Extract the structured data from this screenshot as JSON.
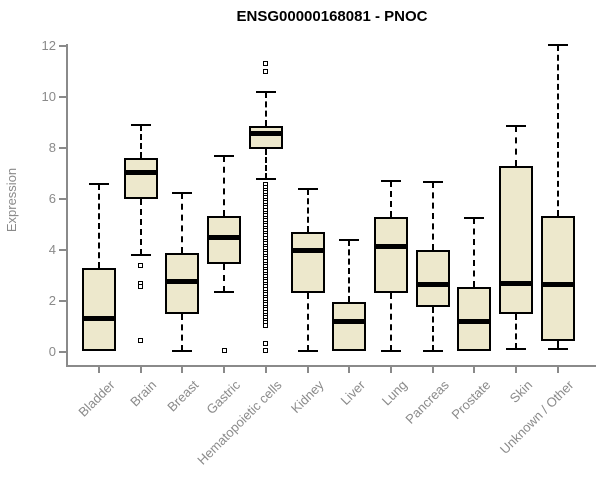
{
  "title": "ENSG00000168081 - PNOC",
  "chart_data": {
    "type": "boxplot",
    "title": "ENSG00000168081 - PNOC",
    "xlabel": "",
    "ylabel": "Expression",
    "ylim": [
      0,
      12
    ],
    "yticks": [
      0,
      2,
      4,
      6,
      8,
      10,
      12
    ],
    "grid": false,
    "legend": "none",
    "colors": {
      "box_fill": "#EDE8CC",
      "box_border": "#000000",
      "median": "#000000",
      "axis": "#8A8A8A",
      "title": "#000000",
      "background": "#FFFFFF"
    },
    "categories": [
      "Bladder",
      "Brain",
      "Breast",
      "Gastric",
      "Hematopoietic cells",
      "Kidney",
      "Liver",
      "Lung",
      "Pancreas",
      "Prostate",
      "Skin",
      "Unknown / Other"
    ],
    "boxes": [
      {
        "label": "Bladder",
        "whisker_low": 0.05,
        "q1": 0.05,
        "median": 1.3,
        "q3": 3.3,
        "whisker_high": 6.6,
        "outliers": []
      },
      {
        "label": "Brain",
        "whisker_low": 3.8,
        "q1": 6.0,
        "median": 7.05,
        "q3": 7.6,
        "whisker_high": 8.9,
        "outliers": [
          3.4,
          2.7,
          2.55,
          0.45
        ]
      },
      {
        "label": "Breast",
        "whisker_low": 0.05,
        "q1": 1.5,
        "median": 2.75,
        "q3": 3.9,
        "whisker_high": 6.25,
        "outliers": []
      },
      {
        "label": "Gastric",
        "whisker_low": 2.35,
        "q1": 3.45,
        "median": 4.5,
        "q3": 5.35,
        "whisker_high": 7.7,
        "outliers": [
          0.05
        ]
      },
      {
        "label": "Hematopoietic cells",
        "whisker_low": 6.8,
        "q1": 7.95,
        "median": 8.55,
        "q3": 8.85,
        "whisker_high": 10.2,
        "outliers": [
          11.3,
          11.0,
          6.55,
          6.45,
          6.35,
          6.25,
          6.15,
          6.05,
          5.95,
          5.85,
          5.75,
          5.65,
          5.55,
          5.45,
          5.35,
          5.25,
          5.15,
          5.05,
          4.95,
          4.85,
          4.75,
          4.65,
          4.55,
          4.45,
          4.35,
          4.25,
          4.15,
          4.05,
          3.95,
          3.85,
          3.75,
          3.65,
          3.55,
          3.45,
          3.35,
          3.25,
          3.15,
          3.05,
          2.95,
          2.85,
          2.75,
          2.65,
          2.55,
          2.45,
          2.35,
          2.25,
          2.15,
          2.05,
          1.95,
          1.85,
          1.75,
          1.65,
          1.55,
          1.45,
          1.35,
          1.25,
          1.15,
          1.05,
          0.35,
          0.05
        ]
      },
      {
        "label": "Kidney",
        "whisker_low": 0.05,
        "q1": 2.3,
        "median": 4.0,
        "q3": 4.7,
        "whisker_high": 6.4,
        "outliers": []
      },
      {
        "label": "Liver",
        "whisker_low": 0.05,
        "q1": 0.05,
        "median": 1.2,
        "q3": 1.95,
        "whisker_high": 4.4,
        "outliers": []
      },
      {
        "label": "Lung",
        "whisker_low": 0.05,
        "q1": 2.3,
        "median": 4.15,
        "q3": 5.3,
        "whisker_high": 6.7,
        "outliers": []
      },
      {
        "label": "Pancreas",
        "whisker_low": 0.05,
        "q1": 1.75,
        "median": 2.65,
        "q3": 4.0,
        "whisker_high": 6.65,
        "outliers": []
      },
      {
        "label": "Prostate",
        "whisker_low": 0.05,
        "q1": 0.05,
        "median": 1.2,
        "q3": 2.55,
        "whisker_high": 5.25,
        "outliers": []
      },
      {
        "label": "Skin",
        "whisker_low": 0.1,
        "q1": 1.5,
        "median": 2.7,
        "q3": 7.3,
        "whisker_high": 8.85,
        "outliers": []
      },
      {
        "label": "Unknown / Other",
        "whisker_low": 0.1,
        "q1": 0.45,
        "median": 2.65,
        "q3": 5.35,
        "whisker_high": 12.05,
        "outliers": []
      }
    ]
  }
}
